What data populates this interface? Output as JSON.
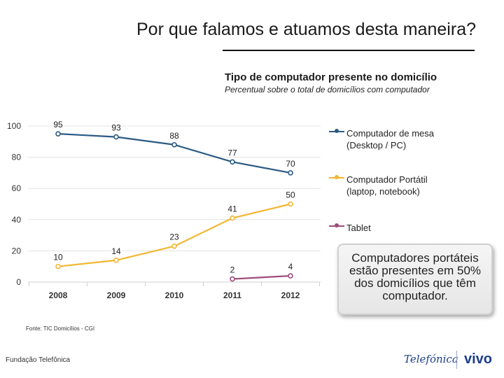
{
  "slide": {
    "title": "Por que falamos e atuamos desta maneira?",
    "source": "Fonte: TIC Domicílios - CGI",
    "footer_org": "Fundação Telefônica",
    "logo_left": "Telefónica",
    "logo_right": "vivo"
  },
  "callout": {
    "text": "Computadores portáteis estão presentes em 50% dos domicílios que têm computador."
  },
  "colors": {
    "desktop": "#2c5a84",
    "laptop": "#f2b632",
    "tablet": "#9c4a7a",
    "grid": "#e3e3e3"
  },
  "chart_data": {
    "type": "line",
    "title": "Tipo de computador presente no domicílio",
    "subtitle": "Percentual sobre o total de domicílios com computador",
    "categories": [
      "2008",
      "2009",
      "2010",
      "2011",
      "2012"
    ],
    "ylim": [
      0,
      100
    ],
    "yticks": [
      "0",
      "20",
      "40",
      "60",
      "80",
      "100"
    ],
    "ytick_values": [
      0,
      20,
      40,
      60,
      80,
      100
    ],
    "grid": true,
    "legend_position": "right",
    "series": [
      {
        "name": "Computador de mesa (Desktop / PC)",
        "key": "desktop",
        "color": "#2c5a84",
        "values": [
          95,
          93,
          88,
          77,
          70
        ]
      },
      {
        "name": "Computador Portátil (laptop, notebook)",
        "key": "laptop",
        "color": "#f2b632",
        "values": [
          10,
          14,
          23,
          41,
          50
        ]
      },
      {
        "name": "Tablet",
        "key": "tablet",
        "color": "#9c4a7a",
        "values": [
          null,
          null,
          null,
          2,
          4
        ]
      }
    ]
  }
}
